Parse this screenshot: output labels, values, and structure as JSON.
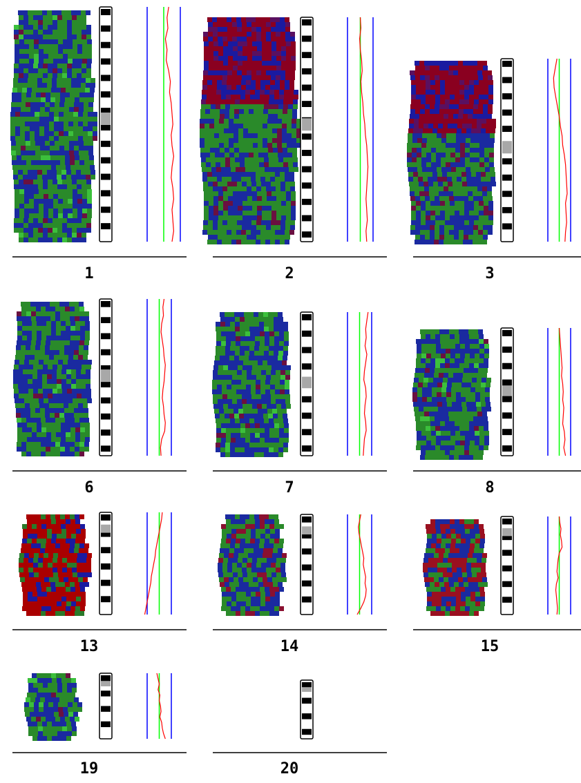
{
  "colors": {
    "gain": "#cc0000",
    "loss": "#00aa00",
    "normal": "#0000aa",
    "ratio_profile": "#ff0000",
    "threshold_lines": "#0000ff",
    "center_line": "#00ff00",
    "band_dark": "#000000",
    "band_light": "#ffffff",
    "centromere": "#a8a8a8"
  },
  "chromosomes": [
    {
      "label": "1",
      "image_tint": "mixed-green-blue",
      "profile": [
        0.3,
        0.2,
        0.25,
        0.1,
        0.2,
        0.15,
        0.3,
        0.4,
        0.35,
        0.45,
        0.5,
        0.55,
        0.45,
        0.5,
        0.6,
        0.5,
        0.45,
        0.55,
        0.6,
        0.5,
        0.55,
        0.6,
        0.5
      ]
    },
    {
      "label": "2",
      "image_tint": "red-top-green-bottom",
      "profile": [
        0.0,
        0.05,
        -0.05,
        0.0,
        0.1,
        0.15,
        0.05,
        0.1,
        0.2,
        0.25,
        0.35,
        0.4,
        0.5,
        0.55,
        0.6,
        0.55,
        0.5,
        0.45,
        0.5,
        0.55,
        0.45,
        0.5
      ]
    },
    {
      "label": "3",
      "image_tint": "red-top-green-bottom",
      "profile": [
        -0.2,
        -0.35,
        -0.5,
        -0.45,
        -0.3,
        -0.15,
        0.0,
        0.1,
        0.25,
        0.3,
        0.45,
        0.55,
        0.6,
        0.65,
        0.7,
        0.55,
        0.6,
        0.65,
        0.55,
        0.5
      ]
    },
    {
      "label": "6",
      "image_tint": "mixed-green-blue",
      "profile": [
        0.4,
        0.3,
        0.35,
        0.2,
        0.15,
        0.25,
        0.35,
        0.4,
        0.5,
        0.45,
        0.4,
        0.3,
        0.25,
        0.35,
        0.4,
        0.5,
        0.45,
        0.2,
        0.1,
        0.15
      ]
    },
    {
      "label": "7",
      "image_tint": "mixed-green-blue",
      "profile": [
        0.7,
        0.6,
        0.5,
        0.55,
        0.45,
        0.6,
        0.5,
        0.4,
        0.35,
        0.5,
        0.55,
        0.45,
        0.4,
        0.5,
        0.55,
        0.4,
        0.35,
        0.3
      ]
    },
    {
      "label": "8",
      "image_tint": "mixed-green-blue",
      "profile": [
        0.0,
        0.05,
        0.1,
        0.15,
        0.2,
        0.25,
        0.2,
        0.3,
        0.35,
        0.3,
        0.4,
        0.35,
        0.3,
        0.45,
        0.5,
        0.4,
        0.55
      ]
    },
    {
      "label": "13",
      "image_tint": "red-dominant",
      "profile": [
        0.25,
        0.2,
        0.1,
        0.0,
        -0.1,
        -0.2,
        -0.3,
        -0.35,
        -0.45,
        -0.55,
        -0.65,
        -0.7,
        -0.8,
        -0.9,
        -1.0,
        -1.1,
        -1.2
      ]
    },
    {
      "label": "14",
      "image_tint": "mixed-green-blue-red",
      "profile": [
        0.1,
        0.0,
        -0.1,
        -0.05,
        0.05,
        0.15,
        0.25,
        0.35,
        0.3,
        0.4,
        0.5,
        0.45,
        0.55,
        0.5,
        0.35,
        0.1,
        -0.2
      ]
    },
    {
      "label": "15",
      "image_tint": "mixed-red-blue",
      "profile": [
        0.0,
        0.05,
        0.15,
        0.1,
        0.2,
        0.25,
        0.0,
        -0.1,
        -0.15,
        -0.2,
        -0.1,
        -0.25,
        -0.3,
        -0.25,
        -0.2,
        -0.15,
        -0.2
      ]
    },
    {
      "label": "19",
      "image_tint": "mixed-green-blue",
      "profile": [
        -0.2,
        -0.1,
        0.0,
        -0.1,
        0.05,
        0.0,
        0.1,
        0.15,
        0.05,
        0.2,
        0.25,
        0.35,
        0.5
      ]
    },
    {
      "label": "20",
      "image_tint": "none",
      "profile": []
    }
  ]
}
